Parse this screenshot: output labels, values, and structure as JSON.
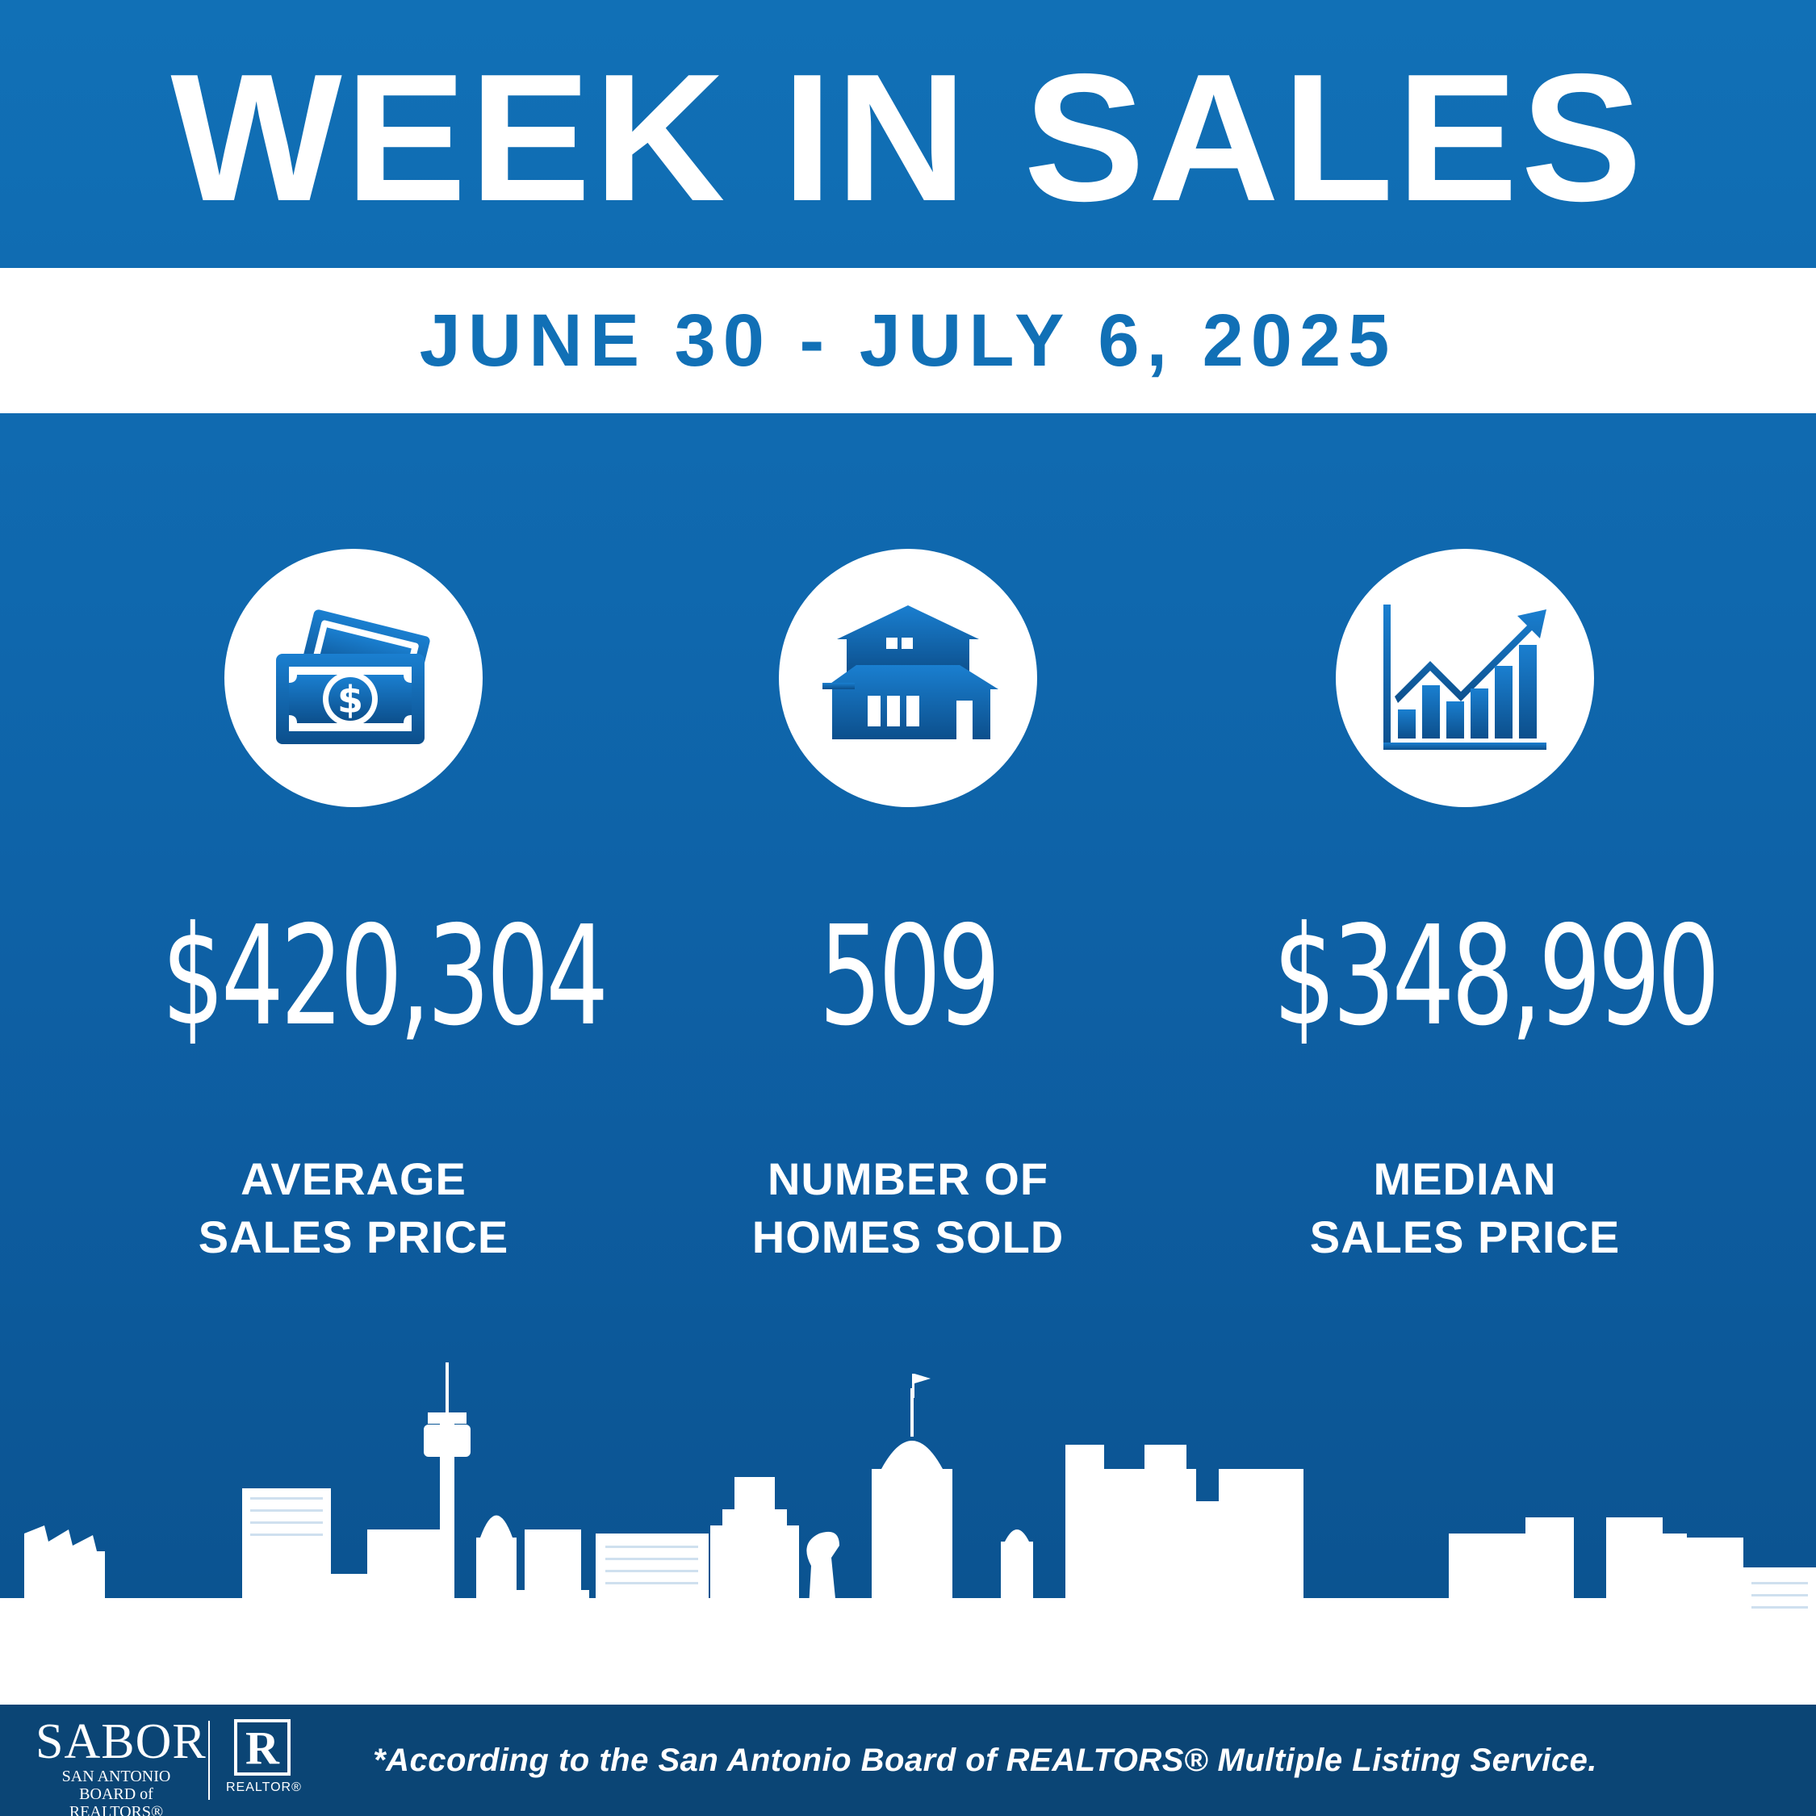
{
  "header": {
    "title": "WEEK IN SALES",
    "date_range": "JUNE 30 - JULY 6, 2025"
  },
  "stats": [
    {
      "icon": "money-icon",
      "value": "$420,304",
      "label_line1": "AVERAGE",
      "label_line2": "SALES PRICE"
    },
    {
      "icon": "house-icon",
      "value": "509",
      "label_line1": "NUMBER OF",
      "label_line2": "HOMES SOLD"
    },
    {
      "icon": "growth-chart-icon",
      "value": "$348,990",
      "label_line1": "MEDIAN",
      "label_line2": "SALES PRICE"
    }
  ],
  "footer": {
    "logo_word": "SABOR",
    "logo_line1": "SAN ANTONIO",
    "logo_line2": "BOARD of REALTORS®",
    "realtor_mark": "R",
    "realtor_text": "REALTOR®",
    "disclaimer": "*According to the San Antonio Board of REALTORS® Multiple Listing Service."
  },
  "colors": {
    "background_blue": "#1170b6",
    "footer_navy": "#0b4575",
    "white": "#ffffff",
    "date_text_blue": "#1170b6"
  }
}
